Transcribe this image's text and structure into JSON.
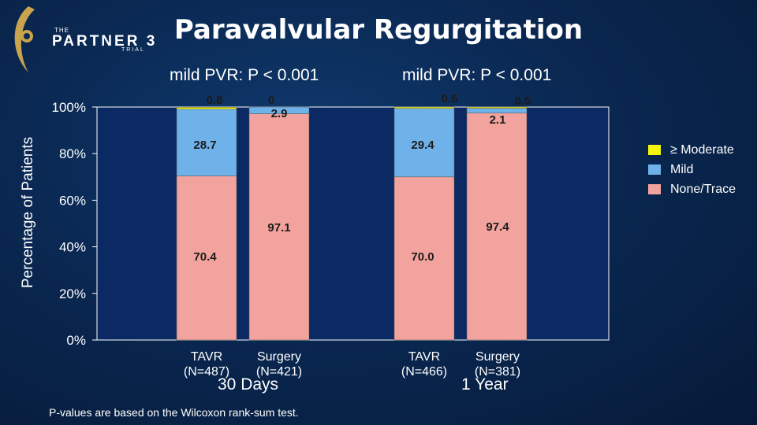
{
  "header": {
    "logo_prefix": "THE",
    "logo_name": "PARTNER 3",
    "logo_suffix": "TRIAL",
    "title": "Paravalvular Regurgitation"
  },
  "annotations": {
    "pvr_left": "mild PVR: P < 0.001",
    "pvr_right": "mild PVR: P < 0.001"
  },
  "groups": {
    "left": "30 Days",
    "right": "1 Year"
  },
  "footnote": "P-values are based on the Wilcoxon rank-sum test.",
  "colors": {
    "moderate": "#f5f50a",
    "mild": "#6fb2ea",
    "none": "#f3a39d",
    "plot_bg": "#0b2a63"
  },
  "chart_data": {
    "type": "bar",
    "stacked": true,
    "ylabel": "Percentage of Patients",
    "ylim": [
      0,
      100
    ],
    "yticks": [
      "0%",
      "20%",
      "40%",
      "60%",
      "80%",
      "100%"
    ],
    "categories": [
      {
        "name": "TAVR",
        "n": "(N=487)"
      },
      {
        "name": "Surgery",
        "n": "(N=421)"
      },
      {
        "name": "TAVR",
        "n": "(N=466)"
      },
      {
        "name": "Surgery",
        "n": "(N=381)"
      }
    ],
    "series": [
      {
        "name": "None/Trace",
        "values": [
          70.4,
          97.1,
          70.0,
          97.4
        ],
        "labels": [
          "70.4",
          "97.1",
          "70.0",
          "97.4"
        ]
      },
      {
        "name": "Mild",
        "values": [
          28.7,
          2.9,
          29.4,
          2.1
        ],
        "labels": [
          "28.7",
          "2.9",
          "29.4",
          "2.1"
        ]
      },
      {
        "name": "≥ Moderate",
        "values": [
          0.8,
          0,
          0.6,
          0.5
        ],
        "labels": [
          "0.8",
          "0",
          "0.6",
          "0.5"
        ]
      }
    ],
    "legend": [
      "≥ Moderate",
      "Mild",
      "None/Trace"
    ],
    "legend_position": "right"
  }
}
